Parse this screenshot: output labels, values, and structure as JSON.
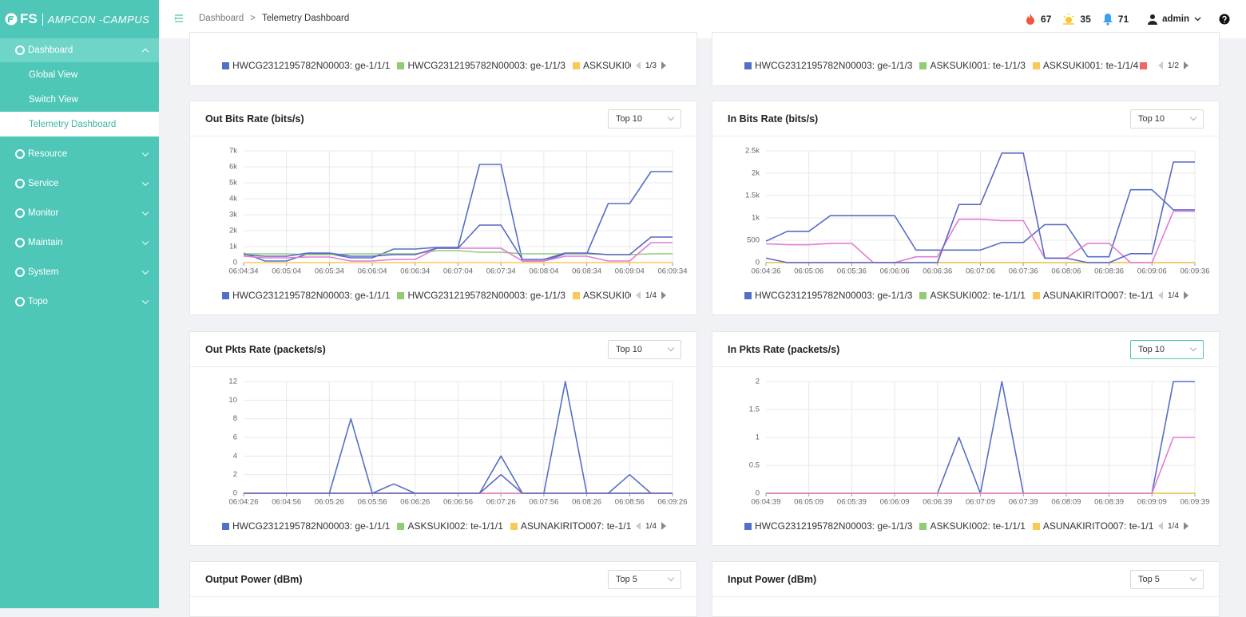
{
  "brand": {
    "mark": "FS",
    "product": "AMPCON -CAMPUS"
  },
  "nav": [
    {
      "label": "Dashboard",
      "children": [
        "Global View",
        "Switch View",
        "Telemetry Dashboard"
      ]
    },
    {
      "label": "Resource"
    },
    {
      "label": "Service"
    },
    {
      "label": "Monitor"
    },
    {
      "label": "Maintain"
    },
    {
      "label": "System"
    },
    {
      "label": "Topo"
    }
  ],
  "breadcrumb": [
    "Dashboard",
    "Telemetry Dashboard"
  ],
  "breadcrumb_separator": ">",
  "header": {
    "critical": 67,
    "warning": 35,
    "notifications": 71,
    "user": "admin"
  },
  "partial_panels": [
    {
      "legend": [
        "HWCG2312195782N00003: ge-1/1/1",
        "HWCG2312195782N00003: ge-1/1/3",
        "ASKSUKI00"
      ],
      "legend_colors": [
        "#5470c6",
        "#91cc75",
        "#fac858"
      ],
      "legend_page": "1/3"
    },
    {
      "legend": [
        "HWCG2312195782N00003: ge-1/1/3",
        "ASKSUKI001: te-1/1/3",
        "ASKSUKI001: te-1/1/4"
      ],
      "legend_colors": [
        "#5470c6",
        "#91cc75",
        "#fac858"
      ],
      "legend_page": "1/2"
    }
  ],
  "chart_data": [
    {
      "type": "line",
      "title": "Out Bits Rate (bits/s)",
      "select": "Top 10",
      "grid": true,
      "legend_page": "1/4",
      "categories": [
        "06:04:34",
        null,
        "06:05:04",
        null,
        "06:05:34",
        null,
        "06:06:04",
        null,
        "06:06:34",
        null,
        "06:07:04",
        null,
        "06:07:34",
        null,
        "06:08:04",
        null,
        "06:08:34",
        null,
        "06:09:04",
        null,
        "06:09:34"
      ],
      "ylim": [
        0,
        7000
      ],
      "yticks": [
        0,
        {
          "value": 1000,
          "label": "1k"
        },
        {
          "value": 2000,
          "label": "2k"
        },
        {
          "value": 3000,
          "label": "3k"
        },
        {
          "value": 4000,
          "label": "4k"
        },
        {
          "value": 5000,
          "label": "5k"
        },
        {
          "value": 6000,
          "label": "6k"
        },
        {
          "value": 7000,
          "label": "7k"
        }
      ],
      "series": [
        {
          "name": "HWCG2312195782N00003: ge-1/1/1",
          "color": "#5470c6",
          "values": [
            600,
            100,
            100,
            550,
            550,
            300,
            300,
            850,
            850,
            950,
            950,
            6150,
            6150,
            100,
            100,
            550,
            550,
            3700,
            3700,
            5700,
            5700
          ]
        },
        {
          "name": "HWCG2312195782N00003: ge-1/1/3",
          "color": "#91cc75",
          "values": [
            550,
            550,
            550,
            500,
            500,
            550,
            550,
            550,
            550,
            750,
            750,
            650,
            650,
            550,
            550,
            550,
            550,
            500,
            500,
            550,
            550
          ]
        },
        {
          "name": "ASKSUKI00",
          "color": "#fac858",
          "values": [
            0,
            0,
            0,
            0,
            0,
            0,
            0,
            0,
            0,
            0,
            0,
            0,
            0,
            0,
            0,
            0,
            0,
            0,
            0,
            0,
            0
          ]
        },
        {
          "color": "#e47ad6",
          "values": [
            400,
            300,
            300,
            350,
            350,
            100,
            100,
            200,
            200,
            900,
            900,
            900,
            900,
            100,
            100,
            400,
            400,
            100,
            100,
            1250,
            1250
          ]
        },
        {
          "color": "#5b67c4",
          "values": [
            500,
            400,
            400,
            600,
            600,
            400,
            400,
            500,
            500,
            900,
            900,
            2350,
            2350,
            200,
            200,
            600,
            600,
            500,
            500,
            1600,
            1600
          ]
        }
      ]
    },
    {
      "type": "line",
      "title": "In Bits Rate (bits/s)",
      "select": "Top 10",
      "grid": true,
      "legend_page": "1/4",
      "categories": [
        "06:04:36",
        null,
        "06:05:06",
        null,
        "06:05:36",
        null,
        "06:06:06",
        null,
        "06:06:36",
        null,
        "06:07:06",
        null,
        "06:07:36",
        null,
        "06:08:06",
        null,
        "06:08:36",
        null,
        "06:09:06",
        null,
        "06:09:36"
      ],
      "ylim": [
        0,
        2500
      ],
      "yticks": [
        0,
        500,
        {
          "value": 1000,
          "label": "1k"
        },
        {
          "value": 1500,
          "label": "1.5k"
        },
        {
          "value": 2000,
          "label": "2k"
        },
        {
          "value": 2500,
          "label": "2.5k"
        }
      ],
      "series": [
        {
          "name": "HWCG2312195782N00003: ge-1/1/3",
          "color": "#5470c6",
          "values": [
            480,
            700,
            700,
            1050,
            1050,
            1050,
            1050,
            280,
            280,
            280,
            280,
            450,
            450,
            850,
            850,
            130,
            130,
            1630,
            1630,
            1180,
            1180
          ]
        },
        {
          "name": "ASKSUKI002: te-1/1/1",
          "color": "#91cc75",
          "values": [
            0,
            0,
            0,
            0,
            0,
            0,
            0,
            0,
            0,
            0,
            0,
            0,
            0,
            0,
            0,
            0,
            0,
            0,
            0,
            0,
            0
          ]
        },
        {
          "name": "ASUNAKIRITO007: te-1/1/",
          "color": "#fac858",
          "values": [
            0,
            0,
            0,
            0,
            0,
            0,
            0,
            0,
            0,
            0,
            0,
            0,
            0,
            0,
            0,
            0,
            0,
            0,
            0,
            0,
            0
          ]
        },
        {
          "color": "#e47ad6",
          "values": [
            420,
            400,
            400,
            430,
            430,
            0,
            0,
            130,
            130,
            970,
            970,
            940,
            940,
            100,
            100,
            430,
            430,
            0,
            0,
            1150,
            1150
          ]
        },
        {
          "color": "#5b67c4",
          "values": [
            100,
            0,
            0,
            0,
            0,
            0,
            0,
            0,
            0,
            1300,
            1300,
            2450,
            2450,
            100,
            100,
            0,
            0,
            200,
            200,
            2250,
            2250
          ]
        }
      ]
    },
    {
      "type": "line",
      "title": "Out Pkts Rate (packets/s)",
      "select": "Top 10",
      "grid": true,
      "legend_page": "1/4",
      "categories": [
        "06:04:26",
        null,
        "06:04:56",
        null,
        "06:05:26",
        null,
        "06:05:56",
        null,
        "06:06:26",
        null,
        "06:06:56",
        null,
        "06:07:26",
        null,
        "06:07:56",
        null,
        "06:08:26",
        null,
        "06:08:56",
        null,
        "06:09:26"
      ],
      "ylim": [
        0,
        12
      ],
      "yticks": [
        0,
        2,
        4,
        6,
        8,
        10,
        12
      ],
      "series": [
        {
          "name": "HWCG2312195782N00003: ge-1/1/1",
          "color": "#5470c6",
          "values": [
            0,
            0,
            0,
            0,
            0,
            8,
            0,
            1,
            0,
            0,
            0,
            0,
            4,
            0,
            0,
            12,
            0,
            0,
            2,
            0,
            0
          ]
        },
        {
          "name": "ASKSUKI002: te-1/1/1",
          "color": "#91cc75",
          "values": [
            0,
            0,
            0,
            0,
            0,
            0,
            0,
            0,
            0,
            0,
            0,
            0,
            0,
            0,
            0,
            0,
            0,
            0,
            0,
            0,
            0
          ]
        },
        {
          "name": "ASUNAKIRITO007: te-1/1/",
          "color": "#fac858",
          "values": [
            0,
            0,
            0,
            0,
            0,
            0,
            0,
            0,
            0,
            0,
            0,
            0,
            0,
            0,
            0,
            0,
            0,
            0,
            0,
            0,
            0
          ]
        },
        {
          "color": "#e47ad6",
          "values": [
            0,
            0,
            0,
            0,
            0,
            0,
            0,
            0,
            0,
            0,
            0,
            0,
            0,
            0,
            0,
            0,
            0,
            0,
            0,
            0,
            0
          ]
        },
        {
          "color": "#5b67c4",
          "values": [
            0,
            0,
            0,
            0,
            0,
            0,
            0,
            0,
            0,
            0,
            0,
            0,
            2,
            0,
            0,
            0,
            0,
            0,
            0,
            0,
            0
          ]
        }
      ]
    },
    {
      "type": "line",
      "title": "In Pkts Rate (packets/s)",
      "select": "Top 10",
      "grid": true,
      "legend_page": "1/4",
      "categories": [
        "06:04:39",
        null,
        "06:05:09",
        null,
        "06:05:39",
        null,
        "06:06:09",
        null,
        "06:06:39",
        null,
        "06:07:09",
        null,
        "06:07:39",
        null,
        "06:08:09",
        null,
        "06:08:39",
        null,
        "06:09:09",
        null,
        "06:09:39"
      ],
      "ylim": [
        0,
        2
      ],
      "yticks": [
        0,
        0.5,
        1,
        1.5,
        2
      ],
      "series": [
        {
          "name": "HWCG2312195782N00003: ge-1/1/3",
          "color": "#5470c6",
          "values": [
            0,
            0,
            0,
            0,
            0,
            0,
            0,
            0,
            0,
            1,
            0,
            2,
            0,
            0,
            0,
            0,
            0,
            0,
            0,
            2,
            2
          ]
        },
        {
          "name": "ASKSUKI002: te-1/1/1",
          "color": "#91cc75",
          "values": [
            0,
            0,
            0,
            0,
            0,
            0,
            0,
            0,
            0,
            0,
            0,
            0,
            0,
            0,
            0,
            0,
            0,
            0,
            0,
            0,
            0
          ]
        },
        {
          "name": "ASUNAKIRITO007: te-1/1/",
          "color": "#fac858",
          "values": [
            0,
            0,
            0,
            0,
            0,
            0,
            0,
            0,
            0,
            0,
            0,
            0,
            0,
            0,
            0,
            0,
            0,
            0,
            0,
            0,
            0
          ]
        },
        {
          "color": "#e47ad6",
          "values": [
            0,
            0,
            0,
            0,
            0,
            0,
            0,
            0,
            0,
            0,
            0,
            0,
            0,
            0,
            0,
            0,
            0,
            0,
            0,
            1,
            1
          ]
        }
      ]
    }
  ],
  "bottom_panels": [
    {
      "title": "Output Power (dBm)",
      "select": "Top 5"
    },
    {
      "title": "Input Power (dBm)",
      "select": "Top 5"
    }
  ]
}
